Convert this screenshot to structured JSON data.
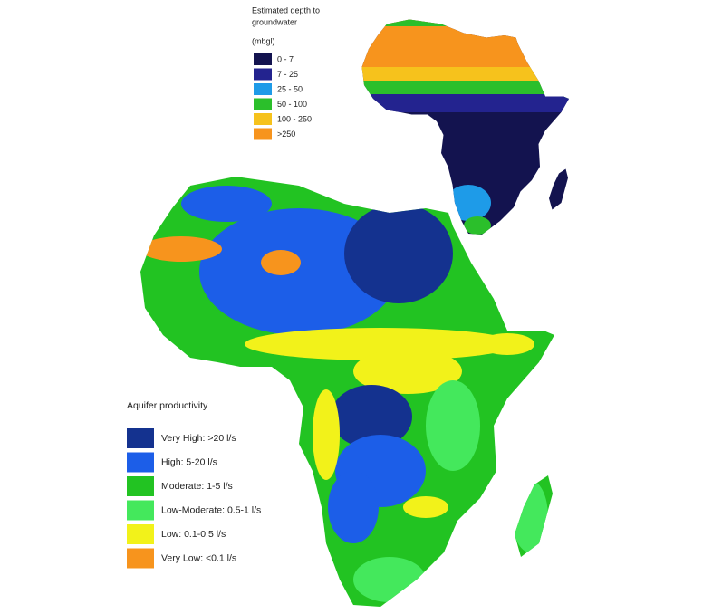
{
  "inset_legend": {
    "title_lines": [
      "Estimated depth to",
      "groundwater"
    ],
    "unit": "(mbgl)",
    "items": [
      {
        "label": "0 - 7",
        "color": "#13134f"
      },
      {
        "label": "7 - 25",
        "color": "#23238f"
      },
      {
        "label": "25 - 50",
        "color": "#1e9be8"
      },
      {
        "label": "50 - 100",
        "color": "#2bbf2b"
      },
      {
        "label": "100 - 250",
        "color": "#f6c21c"
      },
      {
        "label": ">250",
        "color": "#f7941d"
      }
    ]
  },
  "main_legend": {
    "title": "Aquifer productivity",
    "items": [
      {
        "label": "Very High: >20 l/s",
        "color": "#14328f"
      },
      {
        "label": "High: 5-20 l/s",
        "color": "#1c5ee8"
      },
      {
        "label": "Moderate: 1-5 l/s",
        "color": "#22c322"
      },
      {
        "label": "Low-Moderate: 0.5-1 l/s",
        "color": "#44e85c"
      },
      {
        "label": "Low: 0.1-0.5 l/s",
        "color": "#f2f21a"
      },
      {
        "label": "Very Low: <0.1 l/s",
        "color": "#f7941d"
      }
    ]
  }
}
